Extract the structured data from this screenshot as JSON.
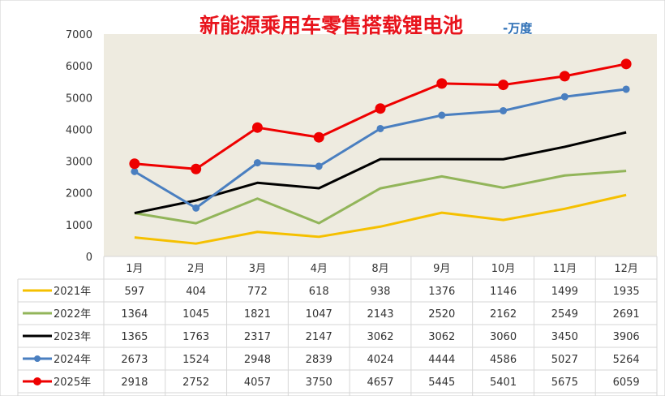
{
  "chart_data": {
    "type": "line",
    "title": "新能源乘用车零售搭载锂电池",
    "unit": "-万度",
    "categories": [
      "1月",
      "2月",
      "3月",
      "4月",
      "8月",
      "9月",
      "10月",
      "11月",
      "12月"
    ],
    "ylim": [
      0,
      7000
    ],
    "yticks": [
      "0",
      "1000",
      "2000",
      "3000",
      "4000",
      "5000",
      "6000",
      "7000"
    ],
    "grid": false,
    "legend": "data-table",
    "series": [
      {
        "name": "2021年",
        "color": "#f5c000",
        "markers": false,
        "values": [
          597,
          404,
          772,
          618,
          938,
          1376,
          1146,
          1499,
          1935
        ]
      },
      {
        "name": "2022年",
        "color": "#92b55a",
        "markers": false,
        "values": [
          1364,
          1045,
          1821,
          1047,
          2143,
          2520,
          2162,
          2549,
          2691
        ]
      },
      {
        "name": "2023年",
        "color": "#000000",
        "markers": false,
        "values": [
          1365,
          1763,
          2317,
          2147,
          3062,
          3062,
          3060,
          3450,
          3906
        ]
      },
      {
        "name": "2024年",
        "color": "#4a7fc0",
        "markers": true,
        "values": [
          2673,
          1524,
          2948,
          2839,
          4024,
          4444,
          4586,
          5027,
          5264
        ]
      },
      {
        "name": "2025年",
        "color": "#ee0000",
        "markers": true,
        "values": [
          2918,
          2752,
          4057,
          3750,
          4657,
          5445,
          5401,
          5675,
          6059
        ]
      }
    ]
  }
}
